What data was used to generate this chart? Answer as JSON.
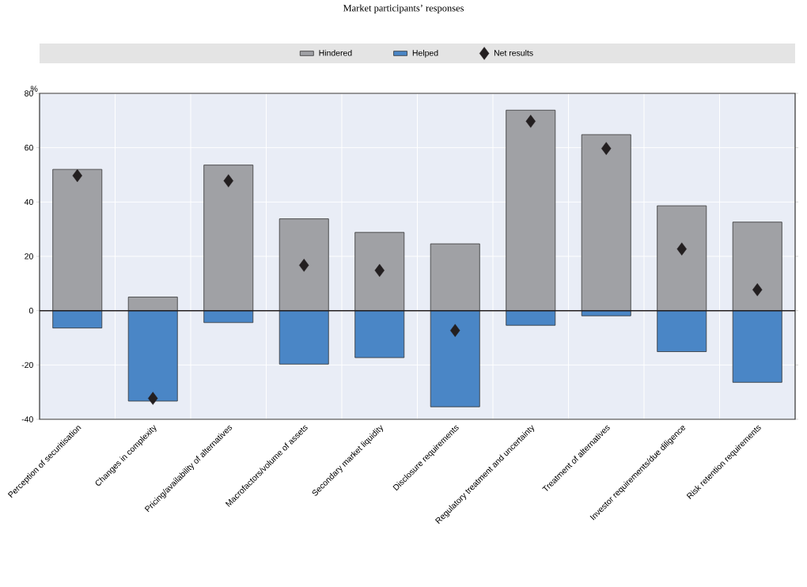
{
  "chart_data": {
    "type": "bar",
    "title": "Market participants’ responses",
    "ylabel": "%",
    "categories": [
      "Perception of securitisation",
      "Changes in complexity",
      "Pricing/availability of alternatives",
      "Macrofactors/volume of assets",
      "Secondary market liquidity",
      "Disclosure requirements",
      "Regulatory treatment and uncertainty",
      "Treatment of alternatives",
      "Investor requirements/due diligence",
      "Risk retention requirements"
    ],
    "series": [
      {
        "name": "Hindered",
        "color": "#a0a1a5",
        "values": [
          52,
          5,
          53.6,
          33.8,
          28.8,
          24.6,
          73.8,
          64.8,
          38.6,
          32.6
        ]
      },
      {
        "name": "Helped",
        "color": "#4a86c6",
        "values": [
          -6.4,
          -33.3,
          -4.4,
          -19.7,
          -17.3,
          -35.4,
          -5.4,
          -1.9,
          -15.1,
          -26.4
        ]
      },
      {
        "name": "Net results",
        "type": "scatter",
        "marker": "diamond",
        "color": "#231f20",
        "values": [
          49.7,
          -32.3,
          47.8,
          16.7,
          14.8,
          -7.3,
          69.7,
          59.7,
          22.7,
          7.7
        ]
      }
    ],
    "stacked": true,
    "ylim": [
      -40,
      80
    ],
    "yticks": [
      -40,
      -20,
      0,
      20,
      40,
      60,
      80
    ],
    "grid": true,
    "legend": "top",
    "ref_lines": [
      {
        "axis": "y",
        "value": 0,
        "color": "#231f20"
      }
    ]
  }
}
